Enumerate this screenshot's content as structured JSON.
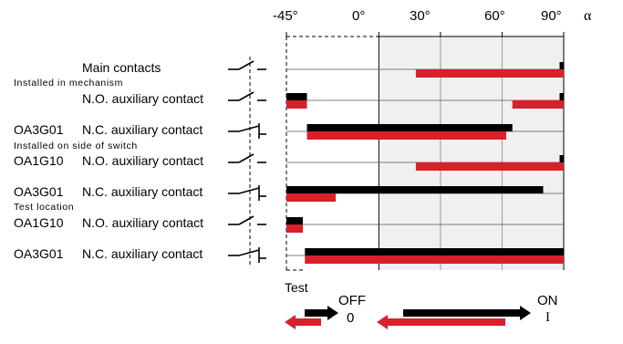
{
  "axis": {
    "ticks": [
      "-45°",
      "0°",
      "30°",
      "60°",
      "90°"
    ],
    "unit_symbol": "α",
    "tick_values": [
      -45,
      0,
      30,
      60,
      90
    ]
  },
  "colors": {
    "on_bar": "#000000",
    "test_bar": "#d8202b",
    "shade": "#f0f0f0",
    "grid": "#9a9a9a"
  },
  "groups": {
    "installed_in_mechanism": "Installed in mechanism",
    "installed_on_side": "Installed on side of switch",
    "test_location": "Test location"
  },
  "rows": [
    {
      "code": "",
      "label": "Main contacts",
      "symbol": "no",
      "bars": [
        {
          "from": 88,
          "to": 90,
          "color": "black"
        },
        {
          "from": 18,
          "to": 90,
          "color": "red"
        }
      ]
    },
    {
      "code": "",
      "label": "N.O. auxiliary contact",
      "symbol": "no",
      "bars": [
        {
          "from": -45,
          "to": -35,
          "color": "black"
        },
        {
          "from": 88,
          "to": 90,
          "color": "black"
        },
        {
          "from": -45,
          "to": -35,
          "color": "red"
        },
        {
          "from": 65,
          "to": 90,
          "color": "red"
        }
      ]
    },
    {
      "code": "OA3G01",
      "label": "N.C. auxiliary contact",
      "symbol": "nc",
      "bars": [
        {
          "from": -35,
          "to": 65,
          "color": "black"
        },
        {
          "from": -35,
          "to": 62,
          "color": "red"
        }
      ]
    },
    {
      "code": "OA1G10",
      "label": "N.O. auxiliary contact",
      "symbol": "no",
      "bars": [
        {
          "from": 88,
          "to": 90,
          "color": "black"
        },
        {
          "from": 18,
          "to": 90,
          "color": "red"
        }
      ]
    },
    {
      "code": "OA3G01",
      "label": "N.C. auxiliary contact",
      "symbol": "nc",
      "bars": [
        {
          "from": -45,
          "to": 80,
          "color": "black"
        },
        {
          "from": -45,
          "to": -21,
          "color": "red"
        }
      ]
    },
    {
      "code": "OA1G10",
      "label": "N.O. auxiliary contact",
      "symbol": "no",
      "bars": [
        {
          "from": -45,
          "to": -37,
          "color": "black"
        },
        {
          "from": -45,
          "to": -37,
          "color": "red"
        }
      ]
    },
    {
      "code": "OA3G01",
      "label": "N.C. auxiliary contact",
      "symbol": "nc",
      "bars": [
        {
          "from": -36,
          "to": 90,
          "color": "black"
        },
        {
          "from": -36,
          "to": 90,
          "color": "red"
        }
      ]
    }
  ],
  "footer": {
    "test_label": "Test",
    "off_label": "OFF",
    "off_symbol": "0",
    "on_label": "ON",
    "on_symbol": "I"
  }
}
